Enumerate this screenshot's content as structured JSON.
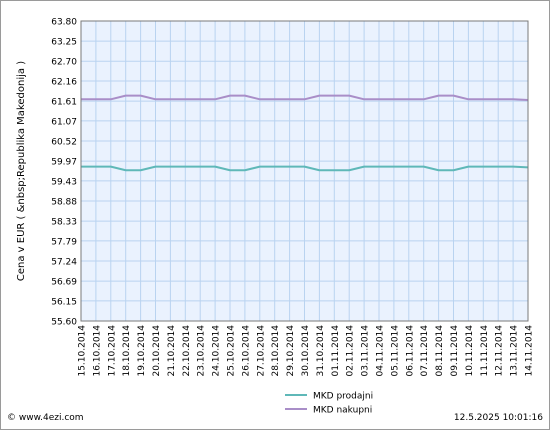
{
  "chart_data": {
    "type": "line",
    "ylabel": "Cena v EUR  ( &nbsp;Republika Makedonija )",
    "ylim": [
      55.6,
      63.8
    ],
    "yticks": [
      "63.80",
      "63.25",
      "62.70",
      "62.16",
      "61.61",
      "61.07",
      "60.52",
      "59.97",
      "59.43",
      "58.88",
      "58.33",
      "57.79",
      "57.24",
      "56.69",
      "56.15",
      "55.60"
    ],
    "categories": [
      "15.10.2014",
      "16.10.2014",
      "17.10.2014",
      "18.10.2014",
      "19.10.2014",
      "20.10.2014",
      "21.10.2014",
      "22.10.2014",
      "23.10.2014",
      "24.10.2014",
      "25.10.2014",
      "26.10.2014",
      "27.10.2014",
      "28.10.2014",
      "29.10.2014",
      "30.10.2014",
      "31.10.2014",
      "01.11.2014",
      "02.11.2014",
      "03.11.2014",
      "04.11.2014",
      "05.11.2014",
      "06.11.2014",
      "07.11.2014",
      "08.11.2014",
      "09.11.2014",
      "10.11.2014",
      "11.11.2014",
      "12.11.2014",
      "13.11.2014",
      "14.11.2014"
    ],
    "series": [
      {
        "name": "MKD prodajni",
        "color": "#5fb8b8",
        "values": [
          59.82,
          59.82,
          59.82,
          59.72,
          59.72,
          59.82,
          59.82,
          59.82,
          59.82,
          59.82,
          59.72,
          59.72,
          59.82,
          59.82,
          59.82,
          59.82,
          59.72,
          59.72,
          59.72,
          59.82,
          59.82,
          59.82,
          59.82,
          59.82,
          59.72,
          59.72,
          59.82,
          59.82,
          59.82,
          59.82,
          59.8
        ]
      },
      {
        "name": "MKD nakupni",
        "color": "#a98ec8",
        "values": [
          61.66,
          61.66,
          61.66,
          61.76,
          61.76,
          61.66,
          61.66,
          61.66,
          61.66,
          61.66,
          61.76,
          61.76,
          61.66,
          61.66,
          61.66,
          61.66,
          61.76,
          61.76,
          61.76,
          61.66,
          61.66,
          61.66,
          61.66,
          61.66,
          61.76,
          61.76,
          61.66,
          61.66,
          61.66,
          61.66,
          61.64
        ]
      }
    ],
    "grid": true,
    "legend_position": "bottom-center"
  },
  "footer": {
    "site": "© www.4ezi.com",
    "timestamp": "12.5.2025 10:01:16"
  }
}
